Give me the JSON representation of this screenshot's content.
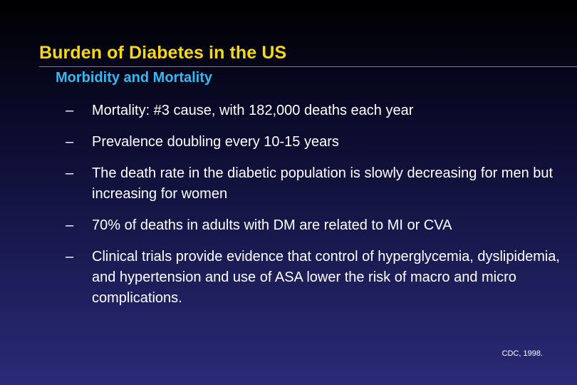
{
  "slide": {
    "title": "Burden of Diabetes in the US",
    "subtitle": "Morbidity and Mortality",
    "bullet_marker": "–",
    "bullets": [
      "Mortality:  #3 cause, with 182,000 deaths each year",
      "Prevalence doubling every 10-15 years",
      "The death rate in the diabetic population is slowly decreasing for men but increasing for women",
      "70% of deaths in adults with DM are related to MI or CVA",
      "Clinical trials provide evidence that control of hyperglycemia, dyslipidemia, and hypertension and use of ASA lower the risk of macro and micro complications."
    ],
    "citation": "CDC, 1998."
  },
  "colors": {
    "title": "#f5d81c",
    "subtitle": "#38b8f0",
    "body_text": "#ffffff",
    "background_top": "#000000",
    "background_bottom": "#2a2a78"
  }
}
